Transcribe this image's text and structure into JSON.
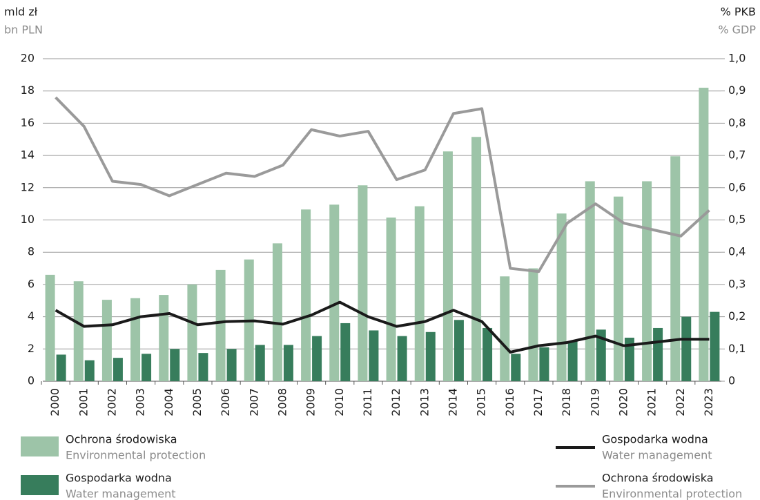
{
  "chart_data": {
    "type": "bar",
    "y_axis_label": "mld zł",
    "y_axis_label_en": "bn PLN",
    "y2_axis_label": "% PKB",
    "y2_axis_label_en": "% GDP",
    "categories": [
      "2000",
      "2001",
      "2002",
      "2003",
      "2004",
      "2005",
      "2006",
      "2007",
      "2008",
      "2009",
      "2010",
      "2011",
      "2012",
      "2013",
      "2014",
      "2015",
      "2016",
      "2017",
      "2018",
      "2019",
      "2020",
      "2021",
      "2022",
      "2023"
    ],
    "ylim": [
      0,
      20
    ],
    "yticks": [
      0,
      2,
      4,
      6,
      8,
      10,
      12,
      14,
      16,
      18,
      20
    ],
    "y2lim": [
      0,
      1.0
    ],
    "y2ticks": [
      0,
      {
        "value": 0.1,
        "label": "0,1"
      },
      {
        "value": 0.2,
        "label": "0,2"
      },
      {
        "value": 0.3,
        "label": "0,3"
      },
      {
        "value": 0.4,
        "label": "0,4"
      },
      {
        "value": 0.5,
        "label": "0,5"
      },
      {
        "value": 0.6,
        "label": "0,6"
      },
      {
        "value": 0.7,
        "label": "0,7"
      },
      {
        "value": 0.8,
        "label": "0,8"
      },
      {
        "value": 0.9,
        "label": "0,9"
      },
      {
        "value": 1.0,
        "label": "1,0"
      }
    ],
    "grid": true,
    "series": [
      {
        "name": "Ochrona środowiska",
        "name_en": "Environmental protection",
        "type": "bar",
        "color": "#9dc4a8",
        "values": [
          6.6,
          6.2,
          5.05,
          5.15,
          5.35,
          6.0,
          6.9,
          7.55,
          8.55,
          10.65,
          10.95,
          12.15,
          10.15,
          10.85,
          14.25,
          15.15,
          6.5,
          7.0,
          10.4,
          12.4,
          11.45,
          12.4,
          13.95,
          18.2
        ]
      },
      {
        "name": "Gospodarka wodna",
        "name_en": "Water management",
        "type": "bar",
        "color": "#377d5c",
        "values": [
          1.65,
          1.3,
          1.45,
          1.7,
          2.0,
          1.75,
          2.0,
          2.25,
          2.25,
          2.8,
          3.6,
          3.15,
          2.8,
          3.05,
          3.8,
          3.3,
          1.7,
          2.1,
          2.5,
          3.2,
          2.7,
          3.3,
          4.0,
          4.3
        ]
      },
      {
        "name": "Gospodarka wodna",
        "name_en": "Water management",
        "type": "line",
        "axis": "y2",
        "color": "#1a1a1a",
        "values": [
          0.22,
          0.17,
          0.175,
          0.2,
          0.21,
          0.175,
          0.185,
          0.187,
          0.177,
          0.205,
          0.245,
          0.2,
          0.17,
          0.185,
          0.22,
          0.185,
          0.09,
          0.11,
          0.12,
          0.14,
          0.11,
          0.12,
          0.13,
          0.13
        ]
      },
      {
        "name": "Ochrona środowiska",
        "name_en": "Environmental protection",
        "type": "line",
        "axis": "y2",
        "color": "#9a9a9a",
        "values": [
          0.88,
          0.79,
          0.62,
          0.61,
          0.575,
          0.61,
          0.645,
          0.635,
          0.67,
          0.78,
          0.76,
          0.775,
          0.625,
          0.655,
          0.83,
          0.845,
          0.35,
          0.34,
          0.49,
          0.55,
          0.49,
          0.47,
          0.45,
          0.53
        ]
      }
    ]
  }
}
